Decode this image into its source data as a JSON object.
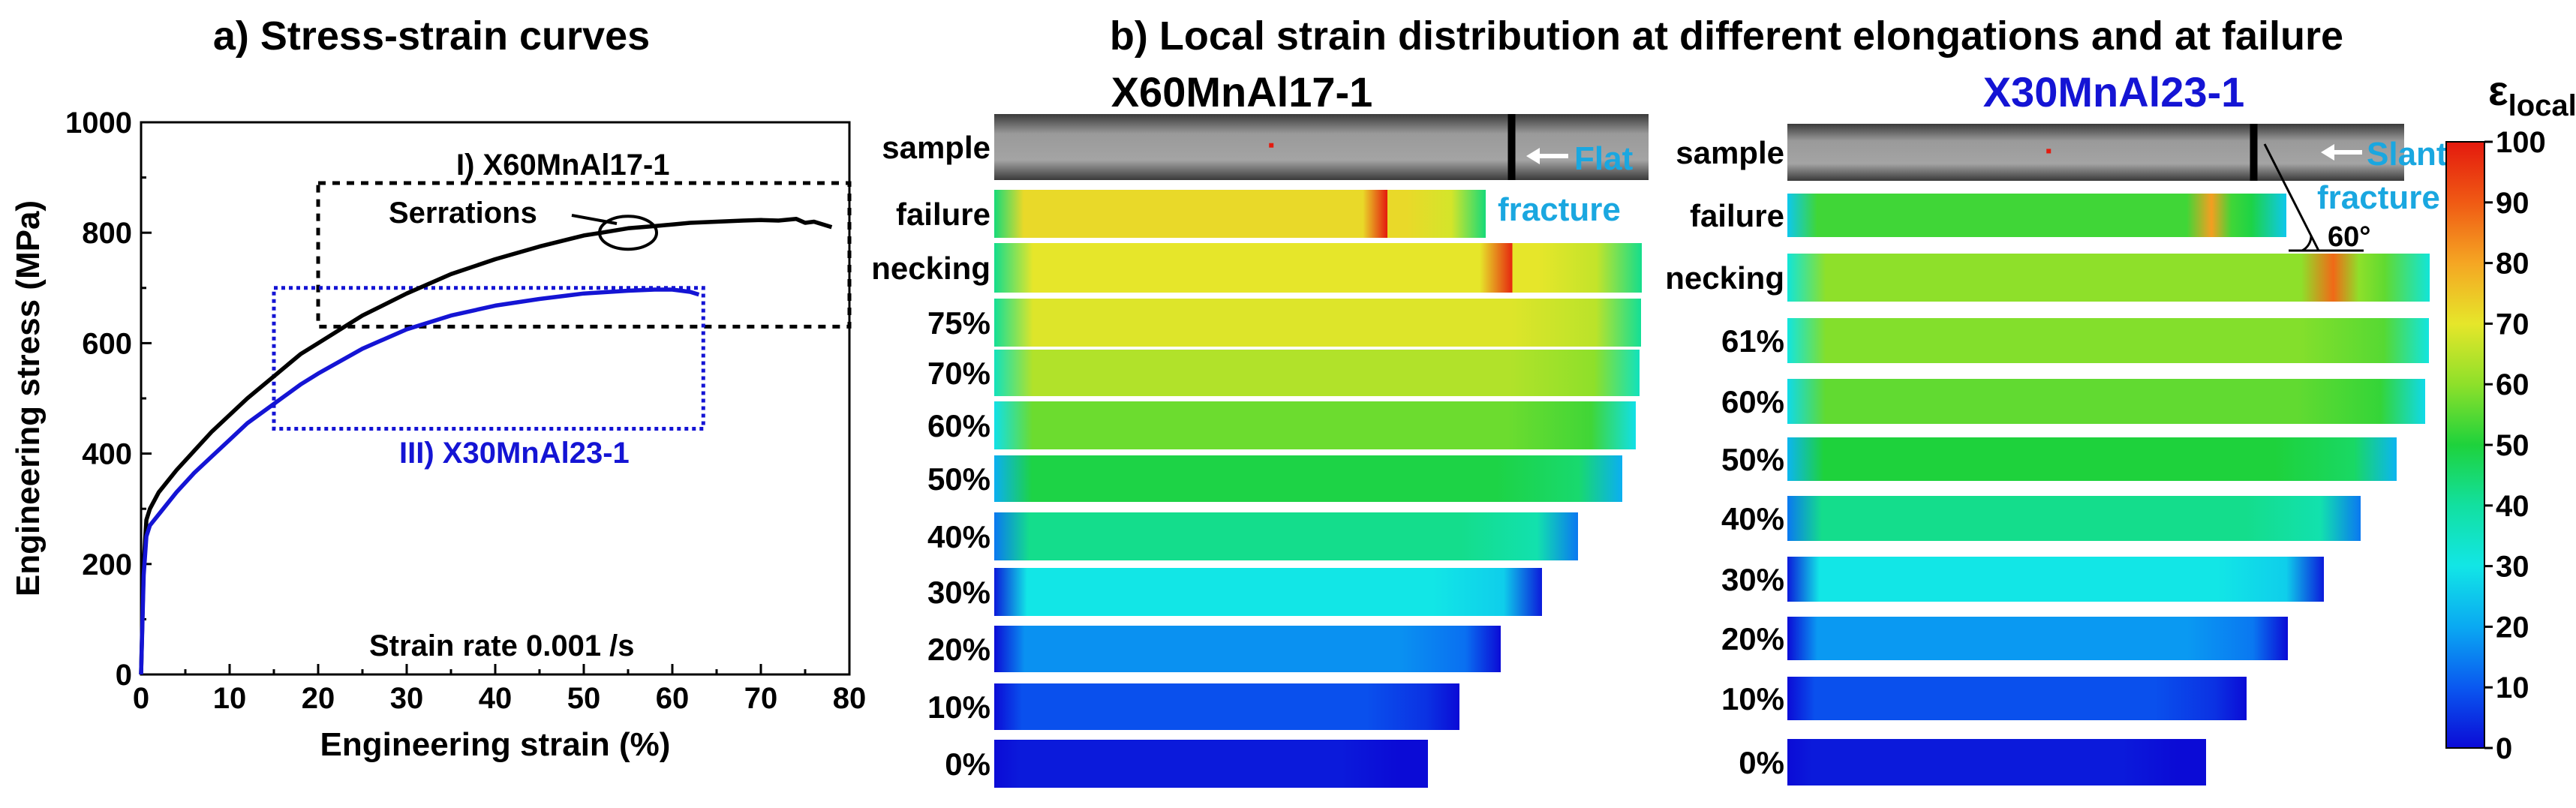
{
  "colors": {
    "x60": "#000000",
    "x30": "#1414d4",
    "accent": "#1aa7e0",
    "colormap": [
      "#0b0bd6",
      "#0a58f0",
      "#0aa9f2",
      "#12e6e6",
      "#12e0a0",
      "#1ed23c",
      "#8ee02a",
      "#e6e62a",
      "#f5a623",
      "#f05a14",
      "#e41a0e"
    ]
  },
  "chart_data": [
    {
      "type": "line",
      "title": "a) Stress-strain curves",
      "xlabel": "Engineering strain (%)",
      "ylabel": "Engineering stress (MPa)",
      "xlim": [
        0,
        80
      ],
      "ylim": [
        0,
        1000
      ],
      "xticks": [
        "0",
        "10",
        "20",
        "30",
        "40",
        "50",
        "60",
        "70",
        "80"
      ],
      "yticks": [
        "0",
        "200",
        "400",
        "600",
        "800",
        "1000"
      ],
      "grid": false,
      "series": [
        {
          "name": "I) X60MnAl17-1",
          "color": "#000000",
          "x": [
            0,
            0.3,
            0.6,
            1,
            2,
            4,
            6,
            8,
            10,
            12,
            15,
            18,
            20,
            25,
            30,
            35,
            40,
            45,
            50,
            52,
            55,
            58,
            60,
            62,
            65,
            68,
            70,
            72,
            74,
            75,
            76,
            78
          ],
          "y": [
            0,
            200,
            280,
            300,
            330,
            370,
            405,
            440,
            470,
            500,
            540,
            580,
            600,
            650,
            690,
            725,
            752,
            775,
            795,
            800,
            808,
            812,
            815,
            818,
            820,
            822,
            823,
            822,
            825,
            818,
            820,
            810
          ]
        },
        {
          "name": "III) X30MnAl23-1",
          "color": "#1414d4",
          "x": [
            0,
            0.3,
            0.6,
            1,
            2,
            4,
            6,
            8,
            10,
            12,
            15,
            18,
            20,
            25,
            30,
            35,
            40,
            45,
            50,
            55,
            58,
            60,
            62,
            63
          ],
          "y": [
            0,
            180,
            250,
            270,
            290,
            330,
            365,
            395,
            425,
            455,
            490,
            525,
            545,
            590,
            625,
            650,
            668,
            680,
            690,
            695,
            697,
            697,
            693,
            688
          ]
        }
      ],
      "annotations": {
        "x60_label": "I) X60MnAl17-1",
        "x30_label": "III) X30MnAl23-1",
        "serrations": "Serrations",
        "strain_rate": "Strain rate 0.001 /s",
        "box_x60": {
          "x": [
            20,
            80
          ],
          "y": [
            630,
            890
          ]
        },
        "box_x30": {
          "x": [
            15,
            63.5
          ],
          "y": [
            445,
            700
          ]
        },
        "serration_marker": {
          "x": 55,
          "y": 800
        }
      }
    },
    {
      "type": "heatmap",
      "title": "b) Local strain distribution at different elongations and at failure",
      "colorbar": {
        "label": "ε",
        "label_sub": "local",
        "label_unit": "[%]",
        "ticks": [
          "0",
          "10",
          "20",
          "30",
          "40",
          "50",
          "60",
          "70",
          "80",
          "90",
          "100"
        ],
        "range": [
          0,
          100
        ]
      },
      "panels": [
        {
          "title": "X60MnAl17-1",
          "annotation": [
            "Flat",
            "fracture"
          ],
          "rows": [
            {
              "label": "sample",
              "strain": null
            },
            {
              "label": "failure",
              "strain": 72
            },
            {
              "label": "necking",
              "strain": 70
            },
            {
              "label": "75%",
              "strain": 69
            },
            {
              "label": "70%",
              "strain": 64
            },
            {
              "label": "60%",
              "strain": 57
            },
            {
              "label": "50%",
              "strain": 49
            },
            {
              "label": "40%",
              "strain": 42
            },
            {
              "label": "30%",
              "strain": 30
            },
            {
              "label": "20%",
              "strain": 17
            },
            {
              "label": "10%",
              "strain": 9
            },
            {
              "label": "0%",
              "strain": 2
            }
          ]
        },
        {
          "title": "X30MnAl23-1",
          "annotation": [
            "Slant",
            "fracture"
          ],
          "angle": "60°",
          "rows": [
            {
              "label": "sample",
              "strain": null
            },
            {
              "label": "failure",
              "strain": 53
            },
            {
              "label": "necking",
              "strain": 60
            },
            {
              "label": "61%",
              "strain": 59
            },
            {
              "label": "60%",
              "strain": 56
            },
            {
              "label": "50%",
              "strain": 50
            },
            {
              "label": "40%",
              "strain": 42
            },
            {
              "label": "30%",
              "strain": 30
            },
            {
              "label": "20%",
              "strain": 18
            },
            {
              "label": "10%",
              "strain": 9
            },
            {
              "label": "0%",
              "strain": 2
            }
          ]
        }
      ]
    }
  ]
}
